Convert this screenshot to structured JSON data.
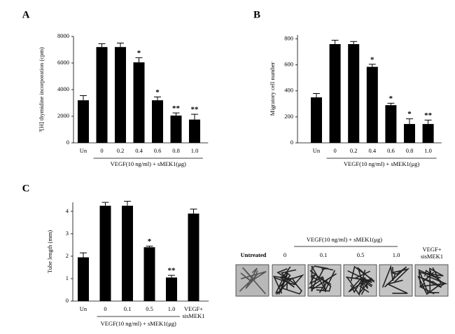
{
  "chart_data": [
    {
      "type": "bar",
      "panel": "A",
      "ylabel": "³[H] thymidine incorporation (cpm)",
      "xlabel": "VEGF(10  ng/ml) + sMEK1(μg)",
      "categories": [
        "Un",
        "0",
        "0.2",
        "0.4",
        "0.6",
        "0.8",
        "1.0"
      ],
      "values": [
        3200,
        7200,
        7200,
        6050,
        3200,
        2050,
        1750
      ],
      "errors": [
        350,
        250,
        300,
        350,
        250,
        200,
        400
      ],
      "annotations": [
        null,
        null,
        null,
        "*",
        "*",
        "**",
        "**"
      ],
      "color": "#000000",
      "ylim": [
        0,
        8000
      ],
      "yticks": [
        0,
        2000,
        4000,
        6000,
        8000
      ]
    },
    {
      "type": "bar",
      "panel": "B",
      "ylabel": "Migratory cell number",
      "xlabel": "VEGF(10  ng/ml) + sMEK1(μg)",
      "categories": [
        "Un",
        "0",
        "0.2",
        "0.4",
        "0.6",
        "0.8",
        "1.0"
      ],
      "values": [
        350,
        760,
        760,
        585,
        290,
        145,
        145
      ],
      "errors": [
        30,
        30,
        20,
        20,
        15,
        40,
        30
      ],
      "annotations": [
        null,
        null,
        null,
        "*",
        "*",
        "*",
        "**"
      ],
      "color": "#000000",
      "ylim": [
        0,
        830
      ],
      "yticks": [
        0,
        200,
        400,
        600,
        800
      ]
    },
    {
      "type": "bar",
      "panel": "C",
      "ylabel": "Tube length (mm)",
      "xlabel": "VEGF(10  ng/ml) + sMEK1(μg)",
      "categories": [
        "Un",
        "0",
        "0.1",
        "0.5",
        "1.0",
        "VEGF+ sisMEK1"
      ],
      "values": [
        1.95,
        4.25,
        4.25,
        2.4,
        1.05,
        3.9
      ],
      "errors": [
        0.2,
        0.15,
        0.2,
        0.05,
        0.1,
        0.2
      ],
      "annotations": [
        null,
        null,
        null,
        "*",
        "**",
        null
      ],
      "color": "#000000",
      "ylim": [
        0,
        4.4
      ],
      "yticks": [
        0,
        1,
        2,
        3,
        4
      ]
    }
  ],
  "micrograph_panel": {
    "header": "VEGF(10  ng/ml) + sMEK1(μg)",
    "labels": [
      "Untreated",
      "0",
      "0.1",
      "0.5",
      "1.0",
      "VEGF+ sisMEK1"
    ]
  }
}
